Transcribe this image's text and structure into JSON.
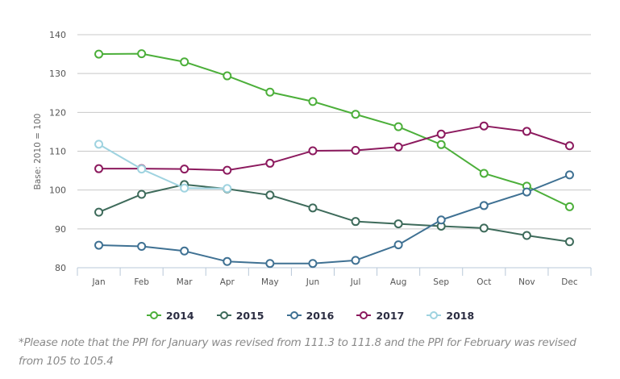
{
  "chart_data": {
    "type": "line",
    "title": "",
    "xlabel": "",
    "ylabel": "Base: 2010 = 100",
    "ylim": [
      80,
      140
    ],
    "yticks": [
      80,
      90,
      100,
      110,
      120,
      130,
      140
    ],
    "grid": true,
    "legend_position": "bottom-center",
    "categories": [
      "Jan",
      "Feb",
      "Mar",
      "Apr",
      "May",
      "Jun",
      "Jul",
      "Aug",
      "Sep",
      "Oct",
      "Nov",
      "Dec"
    ],
    "series": [
      {
        "name": "2014",
        "color": "#4caf3a",
        "values": [
          135.0,
          135.1,
          133.0,
          129.4,
          125.2,
          122.8,
          119.5,
          116.3,
          111.7,
          104.3,
          101.0,
          95.7
        ]
      },
      {
        "name": "2015",
        "color": "#3e6b5b",
        "values": [
          94.3,
          98.9,
          101.4,
          100.3,
          98.7,
          95.4,
          91.9,
          91.3,
          90.7,
          90.2,
          88.3,
          86.7
        ]
      },
      {
        "name": "2016",
        "color": "#3f7193",
        "values": [
          85.8,
          85.5,
          84.3,
          81.6,
          81.1,
          81.1,
          81.9,
          85.9,
          92.3,
          96.0,
          99.5,
          103.9
        ]
      },
      {
        "name": "2017",
        "color": "#8c1a5e",
        "values": [
          105.5,
          105.5,
          105.4,
          105.1,
          106.9,
          110.1,
          110.2,
          111.1,
          114.4,
          116.5,
          115.1,
          111.4
        ]
      },
      {
        "name": "2018",
        "color": "#9fd3e0",
        "values": [
          111.8,
          105.4,
          100.5,
          100.4,
          null,
          null,
          null,
          null,
          null,
          null,
          null,
          null
        ]
      }
    ]
  },
  "legend": {
    "items": [
      {
        "label": "2014",
        "color": "#4caf3a"
      },
      {
        "label": "2015",
        "color": "#3e6b5b"
      },
      {
        "label": "2016",
        "color": "#3f7193"
      },
      {
        "label": "2017",
        "color": "#8c1a5e"
      },
      {
        "label": "2018",
        "color": "#9fd3e0"
      }
    ]
  },
  "footnote": "*Please note that the PPI for January was revised from 111.3 to 111.8 and the PPI for February was revised from 105 to 105.4"
}
